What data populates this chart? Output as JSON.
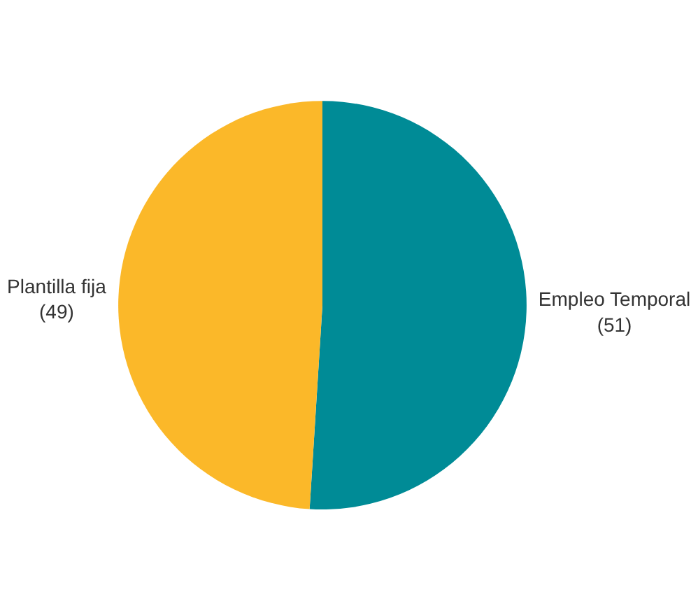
{
  "chart_data": {
    "type": "pie",
    "categories": [
      "Empleo Temporal",
      "Plantilla fija"
    ],
    "values": [
      51,
      49
    ],
    "value_labels": [
      "(51)",
      "(49)"
    ],
    "colors": [
      "#008b96",
      "#fbb829"
    ],
    "legend": false
  }
}
